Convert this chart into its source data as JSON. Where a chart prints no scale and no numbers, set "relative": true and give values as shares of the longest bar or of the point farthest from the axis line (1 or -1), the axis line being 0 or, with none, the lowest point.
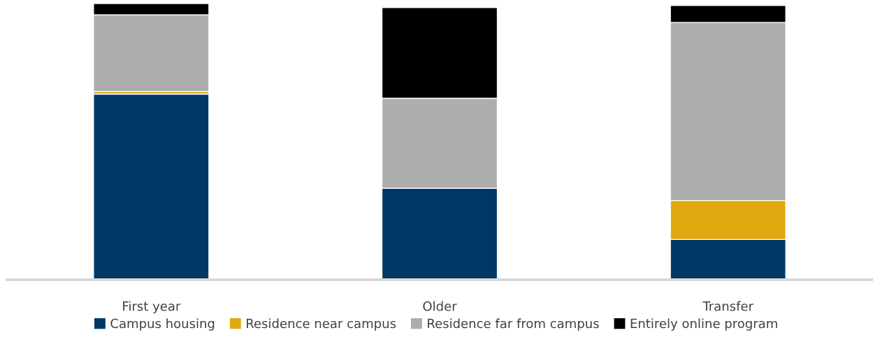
{
  "chart_data": {
    "type": "bar",
    "stacked": true,
    "relative": true,
    "legend": "bottom",
    "grid": false,
    "categories": [
      "First year",
      "Older",
      "Transfer"
    ],
    "series": [
      {
        "name": "Campus housing",
        "color": "#003865",
        "values": [
          0.672,
          0.331,
          0.146
        ]
      },
      {
        "name": "Residence near campus",
        "color": "#e0a912",
        "values": [
          0.01,
          0.0,
          0.141
        ]
      },
      {
        "name": "Residence far from campus",
        "color": "#abaeaa",
        "values": [
          0.277,
          0.326,
          0.644
        ]
      },
      {
        "name": "Entirely online program",
        "color": "#000000",
        "values": [
          0.041,
          0.328,
          0.062
        ]
      }
    ]
  }
}
